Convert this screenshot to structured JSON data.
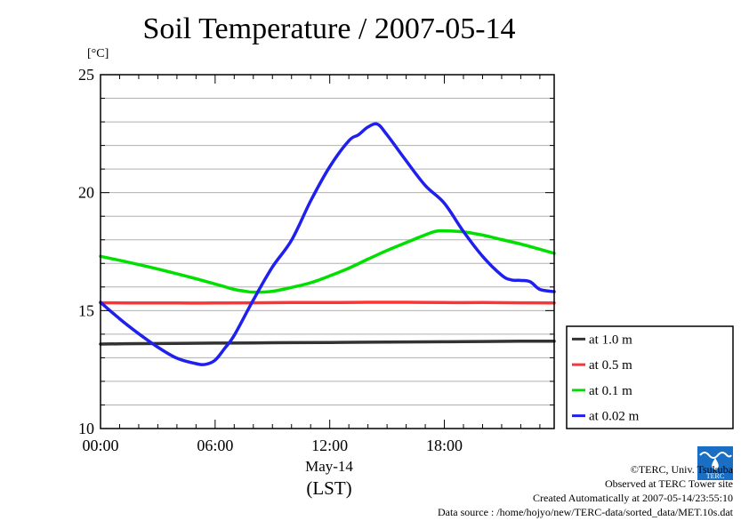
{
  "title": "Soil Temperature / 2007-05-14",
  "unit_label": "[°C]",
  "x_date_label": "May-14",
  "x_zone_label": "(LST)",
  "credits": {
    "copyright": "©TERC, Univ. Tsukuba",
    "site": "Observed at TERC Tower site",
    "created": "Created Automatically at 2007-05-14/23:55:10",
    "source": "Data source : /home/hojyo/new/TERC-data/sorted_data/MET.10s.dat"
  },
  "logo_text": "TERC",
  "chart_data": {
    "type": "line",
    "xlabel": "",
    "ylabel": "[°C]",
    "xlim": [
      0,
      23.75
    ],
    "ylim": [
      10,
      25
    ],
    "x_ticks": [
      {
        "value": 0,
        "label": "00:00"
      },
      {
        "value": 6,
        "label": "06:00"
      },
      {
        "value": 12,
        "label": "12:00"
      },
      {
        "value": 18,
        "label": "18:00"
      }
    ],
    "y_ticks": [
      {
        "value": 10,
        "label": "10"
      },
      {
        "value": 15,
        "label": "15"
      },
      {
        "value": 20,
        "label": "20"
      },
      {
        "value": 25,
        "label": "25"
      }
    ],
    "grid": "horizontal",
    "legend_position": "right",
    "series": [
      {
        "name": "at 1.0 m",
        "color": "#333333",
        "x": [
          0,
          2,
          4,
          6,
          8,
          10,
          12,
          14,
          16,
          18,
          20,
          22,
          23.75
        ],
        "y": [
          13.58,
          13.6,
          13.61,
          13.62,
          13.63,
          13.64,
          13.65,
          13.66,
          13.67,
          13.68,
          13.69,
          13.7,
          13.7
        ]
      },
      {
        "name": "at 0.5 m",
        "color": "#ff3333",
        "x": [
          0,
          2,
          4,
          6,
          8,
          10,
          12,
          14,
          16,
          18,
          20,
          22,
          23.75
        ],
        "y": [
          15.33,
          15.32,
          15.32,
          15.32,
          15.33,
          15.34,
          15.34,
          15.35,
          15.35,
          15.34,
          15.34,
          15.33,
          15.32
        ]
      },
      {
        "name": "at 0.1 m",
        "color": "#00e000",
        "x": [
          0,
          1,
          2,
          3,
          4,
          5,
          6,
          7,
          7.5,
          8,
          9,
          10,
          11,
          12,
          13,
          14,
          15,
          16,
          17,
          17.5,
          18,
          19,
          20,
          21,
          22,
          23,
          23.75
        ],
        "y": [
          17.3,
          17.13,
          16.95,
          16.76,
          16.56,
          16.35,
          16.13,
          15.9,
          15.83,
          15.78,
          15.82,
          15.98,
          16.18,
          16.47,
          16.8,
          17.18,
          17.55,
          17.88,
          18.21,
          18.35,
          18.38,
          18.34,
          18.2,
          18.01,
          17.82,
          17.6,
          17.43
        ]
      },
      {
        "name": "at 0.02 m",
        "color": "#2020ee",
        "x": [
          0,
          1,
          2,
          3,
          4,
          5,
          5.5,
          6,
          6.5,
          7,
          8,
          9,
          10,
          11,
          12,
          13,
          13.5,
          14,
          14.5,
          15,
          16,
          17,
          18,
          19,
          20,
          21,
          21.5,
          22,
          22.5,
          23,
          23.75
        ],
        "y": [
          15.35,
          14.65,
          14.02,
          13.45,
          12.98,
          12.75,
          12.72,
          12.9,
          13.4,
          13.95,
          15.45,
          16.85,
          17.98,
          19.65,
          21.1,
          22.2,
          22.45,
          22.78,
          22.9,
          22.45,
          21.35,
          20.3,
          19.55,
          18.35,
          17.3,
          16.5,
          16.3,
          16.28,
          16.22,
          15.9,
          15.8
        ]
      }
    ]
  }
}
